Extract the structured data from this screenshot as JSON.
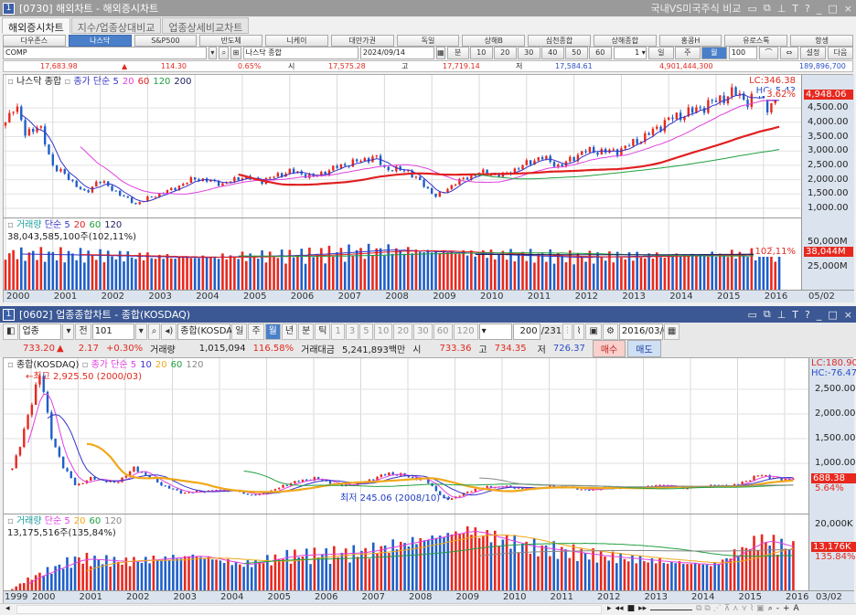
{
  "top_window": {
    "number": "1",
    "title": "[0730] 해외차트 - 해외증시차트",
    "right_label": "국내VS미국주식 비교",
    "window_controls": [
      "restore-icon",
      "copy-icon",
      "pin-icon",
      "T",
      "?",
      "_",
      "□",
      "×"
    ],
    "tabs": [
      "해외증시차트",
      "지수/업종상대비교",
      "업종상세비교차트"
    ],
    "index_buttons": [
      "다우존스",
      "나스닥",
      "S&P500",
      "반도체",
      "니케이",
      "대만가권",
      "독일",
      "상해B",
      "심천종합",
      "상해종합",
      "홍콩H",
      "유로스톡",
      "항셍"
    ],
    "active_index": 1,
    "code": "COMP",
    "name": "나스닥 종합",
    "date": "2024/09/14",
    "interval_buttons": [
      "분",
      "10",
      "20",
      "30",
      "40",
      "50",
      "60"
    ],
    "count_select": "1",
    "period_buttons": [
      "일",
      "주",
      "월"
    ],
    "active_period": 2,
    "bars": "100",
    "settings": "설정",
    "next": "다음",
    "quote": {
      "last": "17,683.98",
      "arrow": "▲",
      "change": "114.30",
      "pct": "0.65%",
      "open_label": "시",
      "open": "17,575.28",
      "high_label": "고",
      "high": "17,719.14",
      "low_label": "저",
      "low": "17,584.61",
      "volume": "4,901,444,300",
      "amount": "189,896,700"
    },
    "chart": {
      "legend_name": "나스닥 종합",
      "ma_label": "종가 단순",
      "ma": [
        {
          "p": "5",
          "color": "#3434c8"
        },
        {
          "p": "20",
          "color": "#e040e0"
        },
        {
          "p": "60",
          "color": "#e02020"
        },
        {
          "p": "120",
          "color": "#20a040"
        },
        {
          "p": "200",
          "color": "#202060"
        }
      ],
      "lc": "LC:346.38",
      "hc": "HC: 5.43",
      "last_price": "4,948.06",
      "last_pct": "3.62%",
      "y_ticks": [
        "4,500.00",
        "4,000.00",
        "3,500.00",
        "3,000.00",
        "2,500.00",
        "2,000.00",
        "1,500.00",
        "1,000.00"
      ],
      "vol_legend": "거래량",
      "vol_ma_label": "단순",
      "vol_ma": [
        {
          "p": "5",
          "color": "#3434c8"
        },
        {
          "p": "20",
          "color": "#e02020"
        },
        {
          "p": "60",
          "color": "#20a040"
        },
        {
          "p": "120",
          "color": "#202060"
        }
      ],
      "vol_info": "38,043,585,100주(102,11%)",
      "vol_ticks": [
        "50,000M",
        "25,000M"
      ],
      "vol_last": "38,044M",
      "vol_pct": "102,11%",
      "x_ticks": [
        "2000",
        "2001",
        "2002",
        "2003",
        "2004",
        "2005",
        "2006",
        "2007",
        "2008",
        "2009",
        "2010",
        "2011",
        "2012",
        "2013",
        "2014",
        "2015",
        "2016"
      ],
      "x_last": "05/02",
      "close_path": [
        [
          2000.0,
          4000
        ],
        [
          2000.2,
          4700
        ],
        [
          2000.4,
          3600
        ],
        [
          2000.7,
          3900
        ],
        [
          2001.0,
          2500
        ],
        [
          2001.3,
          2100
        ],
        [
          2001.7,
          1500
        ],
        [
          2001.95,
          2000
        ],
        [
          2002.5,
          1400
        ],
        [
          2002.75,
          1150
        ],
        [
          2003.0,
          1350
        ],
        [
          2003.5,
          1650
        ],
        [
          2004.0,
          2050
        ],
        [
          2004.6,
          1850
        ],
        [
          2005.0,
          2100
        ],
        [
          2005.4,
          1950
        ],
        [
          2006.0,
          2300
        ],
        [
          2006.5,
          2100
        ],
        [
          2007.0,
          2450
        ],
        [
          2007.8,
          2800
        ],
        [
          2008.0,
          2400
        ],
        [
          2008.5,
          2300
        ],
        [
          2009.1,
          1400
        ],
        [
          2009.5,
          1900
        ],
        [
          2010.0,
          2250
        ],
        [
          2010.5,
          2150
        ],
        [
          2011.3,
          2800
        ],
        [
          2011.7,
          2450
        ],
        [
          2012.2,
          3000
        ],
        [
          2012.9,
          2980
        ],
        [
          2013.5,
          3500
        ],
        [
          2014.0,
          4100
        ],
        [
          2014.6,
          4450
        ],
        [
          2015.4,
          5050
        ],
        [
          2015.7,
          4700
        ],
        [
          2015.9,
          5050
        ],
        [
          2016.1,
          4500
        ],
        [
          2016.33,
          4948
        ]
      ],
      "volume_path_M": [
        [
          2000.0,
          38000
        ],
        [
          2002.0,
          36000
        ],
        [
          2004.0,
          34000
        ],
        [
          2006.0,
          36000
        ],
        [
          2008.0,
          42000
        ],
        [
          2010.0,
          38000
        ],
        [
          2012.0,
          34000
        ],
        [
          2014.0,
          36000
        ],
        [
          2016.33,
          38044
        ]
      ]
    }
  },
  "bottom_window": {
    "number": "1",
    "title": "[0602] 업종종합차트 - 종합(KOSDAQ)",
    "window_controls": [
      "restore-icon",
      "copy-icon",
      "pin-icon",
      "T",
      "?",
      "_",
      "□",
      "×"
    ],
    "market": "업종",
    "scope": "전",
    "code": "101",
    "name": "종합(KOSDAQ)",
    "periods": [
      "일",
      "주",
      "월",
      "년",
      "분",
      "틱"
    ],
    "active_period": 2,
    "intervals": [
      "1",
      "3",
      "5",
      "10",
      "20",
      "30",
      "60",
      "120"
    ],
    "count": "200",
    "total": "/231",
    "date": "2016/03/02",
    "quote": {
      "last": "733.20",
      "arrow": "▲",
      "change": "2.17",
      "pct": "+0.30%",
      "vol_label": "거래량",
      "volume": "1,015,094",
      "vol_pct": "116.58%",
      "amt_label": "거래대금",
      "amount": "5,241,893백만",
      "open_label": "시",
      "open": "733.36",
      "high_label": "고",
      "high": "734.35",
      "low_label": "저",
      "low": "726.37",
      "buy": "매수",
      "sell": "매도"
    },
    "chart": {
      "legend_name": "종합(KOSDAQ)",
      "ma_label": "종가 단순",
      "ma": [
        {
          "p": "5",
          "color": "#e040e0"
        },
        {
          "p": "10",
          "color": "#3434c8"
        },
        {
          "p": "20",
          "color": "#f0a818"
        },
        {
          "p": "60",
          "color": "#20a040"
        },
        {
          "p": "120",
          "color": "#888888"
        }
      ],
      "high_note": "최고 2,925.50 (2000/03)",
      "low_note": "최저 245.06 (2008/10)",
      "lc": "LC:180.90",
      "hc": "HC:-76.47",
      "last_price": "688.38",
      "last_pct": "5.64%",
      "y_ticks": [
        "2,500.00",
        "2,000.00",
        "1,500.00",
        "1,000.00"
      ],
      "vol_legend": "거래량",
      "vol_ma_label": "단순",
      "vol_ma": [
        {
          "p": "5",
          "color": "#e040e0"
        },
        {
          "p": "20",
          "color": "#f0a818"
        },
        {
          "p": "60",
          "color": "#20a040"
        },
        {
          "p": "120",
          "color": "#888888"
        }
      ],
      "vol_info": "13,175,516주(135,84%)",
      "vol_ticks": [
        "20,000K"
      ],
      "vol_last": "13,176K",
      "vol_pct": "135.84%",
      "x_ticks": [
        "1999",
        "2000",
        "2001",
        "2002",
        "2003",
        "2004",
        "2005",
        "2006",
        "2007",
        "2008",
        "2009",
        "2010",
        "2011",
        "2012",
        "2013",
        "2014",
        "2015",
        "2016"
      ],
      "x_last": "03/02",
      "close_path": [
        [
          1999.6,
          900
        ],
        [
          1999.9,
          1800
        ],
        [
          2000.2,
          2925
        ],
        [
          2000.4,
          1600
        ],
        [
          2000.7,
          900
        ],
        [
          2000.95,
          550
        ],
        [
          2001.3,
          700
        ],
        [
          2001.8,
          600
        ],
        [
          2002.2,
          900
        ],
        [
          2002.8,
          550
        ],
        [
          2003.2,
          400
        ],
        [
          2003.9,
          450
        ],
        [
          2004.3,
          450
        ],
        [
          2004.7,
          350
        ],
        [
          2005.0,
          400
        ],
        [
          2005.5,
          600
        ],
        [
          2006.0,
          700
        ],
        [
          2006.6,
          550
        ],
        [
          2007.0,
          600
        ],
        [
          2007.6,
          800
        ],
        [
          2007.9,
          750
        ],
        [
          2008.4,
          650
        ],
        [
          2008.8,
          245
        ],
        [
          2009.5,
          500
        ],
        [
          2010.0,
          530
        ],
        [
          2010.6,
          480
        ],
        [
          2011.0,
          530
        ],
        [
          2011.5,
          510
        ],
        [
          2011.8,
          450
        ],
        [
          2012.3,
          520
        ],
        [
          2012.9,
          500
        ],
        [
          2013.4,
          560
        ],
        [
          2013.9,
          500
        ],
        [
          2014.5,
          550
        ],
        [
          2014.9,
          540
        ],
        [
          2015.5,
          770
        ],
        [
          2015.9,
          670
        ],
        [
          2016.17,
          688
        ]
      ],
      "volume_path_K": [
        [
          1999.6,
          500
        ],
        [
          2000.0,
          4000
        ],
        [
          2001.0,
          10000
        ],
        [
          2002.0,
          9000
        ],
        [
          2003.5,
          11000
        ],
        [
          2004.5,
          8000
        ],
        [
          2005.5,
          11000
        ],
        [
          2007.0,
          12000
        ],
        [
          2009.3,
          19000
        ],
        [
          2010.5,
          14000
        ],
        [
          2012.0,
          11000
        ],
        [
          2013.5,
          9000
        ],
        [
          2014.5,
          8000
        ],
        [
          2015.5,
          16000
        ],
        [
          2016.17,
          13176
        ]
      ]
    }
  },
  "status_toolbar": [
    "play",
    "rewind",
    "stop",
    "fast-forward",
    "zoom-slider",
    "-",
    "+",
    "A"
  ]
}
